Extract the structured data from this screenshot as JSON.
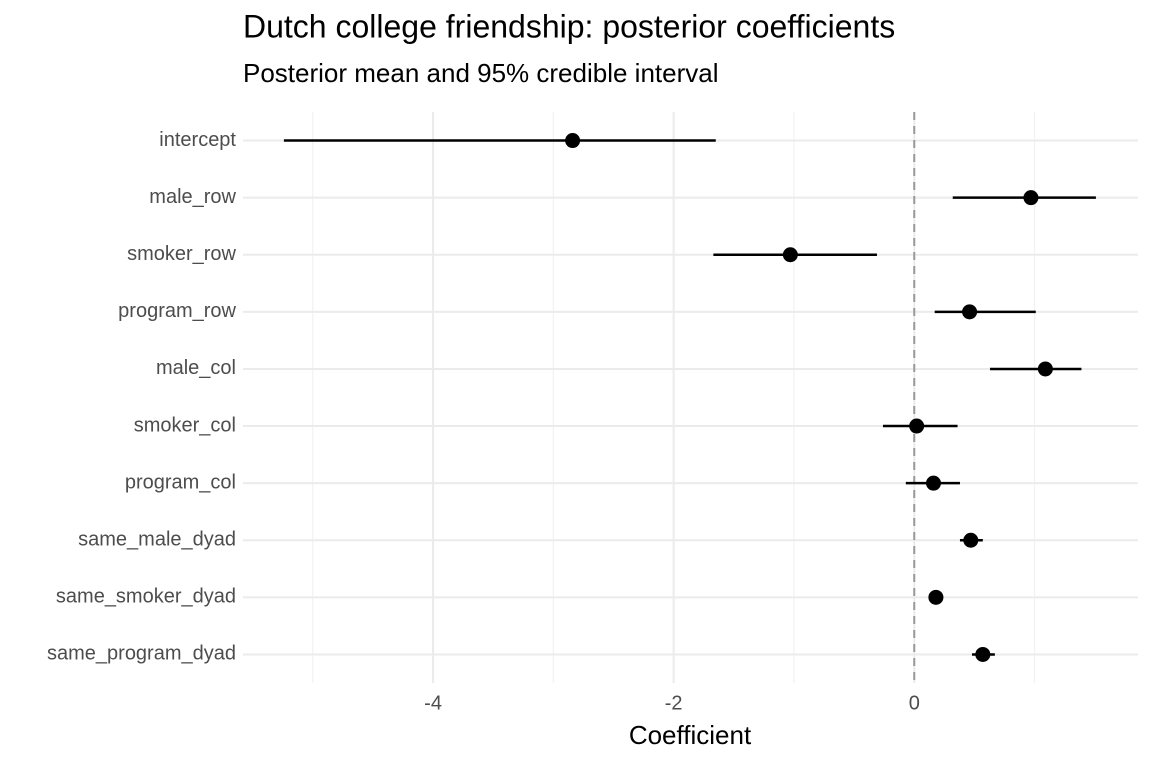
{
  "chart_data": {
    "type": "pointrange",
    "title": "Dutch college friendship: posterior coefficients",
    "subtitle": "Posterior mean and 95% credible interval",
    "x_label": "Coefficient",
    "categories": [
      "intercept",
      "male_row",
      "smoker_row",
      "program_row",
      "male_col",
      "smoker_col",
      "program_col",
      "same_male_dyad",
      "same_smoker_dyad",
      "same_program_dyad"
    ],
    "values": [
      -2.84,
      0.97,
      -1.03,
      0.46,
      1.09,
      0.02,
      0.16,
      0.47,
      0.18,
      0.57
    ],
    "lower": [
      -5.24,
      0.32,
      -1.67,
      0.17,
      0.63,
      -0.26,
      -0.07,
      0.38,
      0.13,
      0.48
    ],
    "upper": [
      -1.65,
      1.51,
      -0.31,
      1.01,
      1.39,
      0.36,
      0.38,
      0.57,
      0.24,
      0.67
    ],
    "color": "#000000",
    "xlim": [
      -5.58,
      1.86
    ],
    "xticks": [
      -4,
      -2,
      0
    ],
    "minor_xticks": [
      -5,
      -3,
      -1,
      1
    ],
    "reference_line": 0,
    "grid": true
  }
}
